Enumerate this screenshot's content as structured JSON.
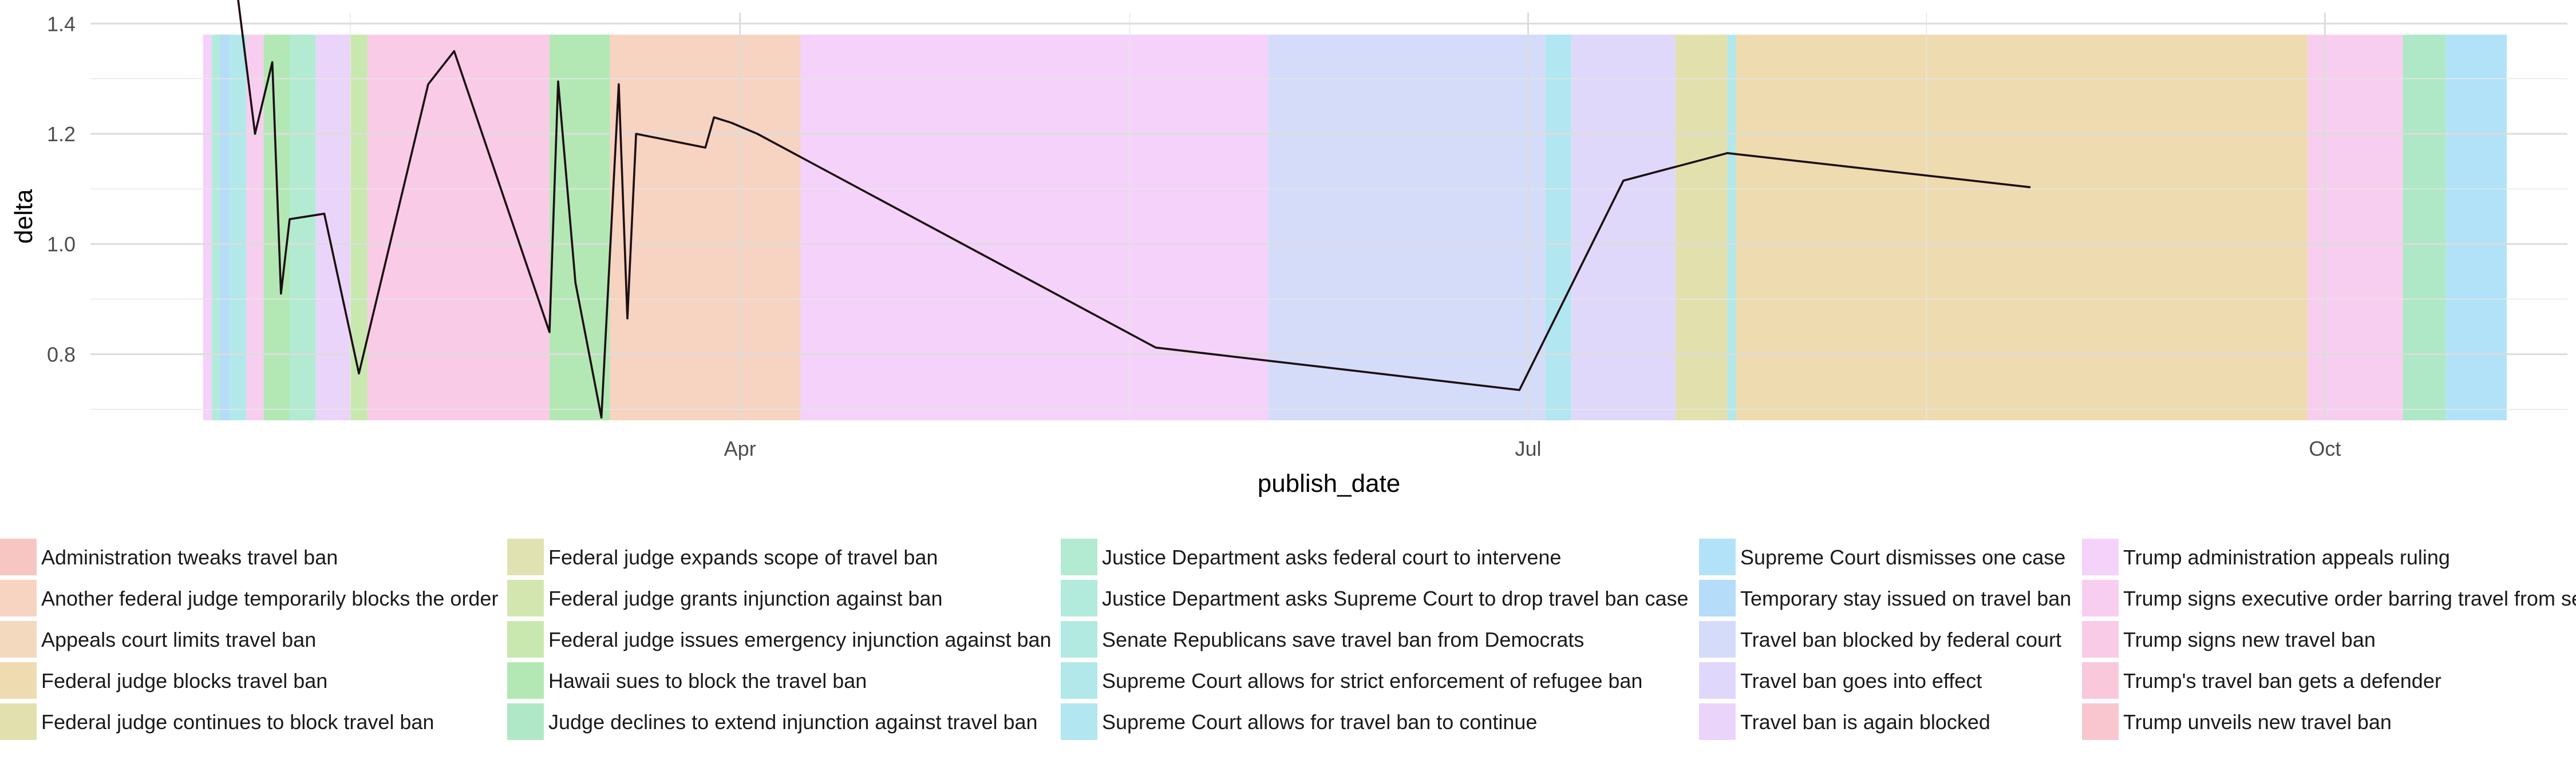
{
  "chart_data": {
    "type": "line",
    "title": "",
    "xlabel": "publish_date",
    "ylabel": "delta",
    "xlim": [
      "2017-01-16",
      "2017-10-29"
    ],
    "ylim": [
      0.68,
      1.42
    ],
    "y_ticks": [
      0.8,
      1.0,
      1.2,
      1.4
    ],
    "y_tick_labels": [
      "0.8",
      "1.0",
      "1.2",
      "1.4"
    ],
    "x_ticks": [
      "2017-04-01",
      "2017-07-01",
      "2017-10-01"
    ],
    "x_tick_labels": [
      "Apr",
      "Jul",
      "Oct"
    ],
    "x_minor_ticks": [
      "2017-02-15",
      "2017-05-16",
      "2017-08-16"
    ],
    "grid": true,
    "legend_position": "bottom",
    "bands": [
      {
        "start": "2017-01-29",
        "end": "2017-01-30",
        "label": "Trump administration appeals ruling"
      },
      {
        "start": "2017-01-30",
        "end": "2017-01-31",
        "label": "Justice Department asks Supreme Court to drop travel ban case"
      },
      {
        "start": "2017-01-31",
        "end": "2017-02-01",
        "label": "Temporary stay issued on travel ban"
      },
      {
        "start": "2017-02-01",
        "end": "2017-02-03",
        "label": "Supreme Court allows for strict enforcement of refugee ban"
      },
      {
        "start": "2017-02-03",
        "end": "2017-02-05",
        "label": "Trump signs executive order barring travel from se"
      },
      {
        "start": "2017-02-05",
        "end": "2017-02-08",
        "label": "Hawaii sues to block the travel ban"
      },
      {
        "start": "2017-02-08",
        "end": "2017-02-11",
        "label": "Justice Department asks federal court to intervene"
      },
      {
        "start": "2017-02-11",
        "end": "2017-02-15",
        "label": "Travel ban is again blocked"
      },
      {
        "start": "2017-02-15",
        "end": "2017-02-17",
        "label": "Federal judge issues emergency injunction against ban"
      },
      {
        "start": "2017-02-17",
        "end": "2017-03-10",
        "label": "Trump signs new travel ban"
      },
      {
        "start": "2017-03-10",
        "end": "2017-03-17",
        "label": "Hawaii sues to block the travel ban"
      },
      {
        "start": "2017-03-17",
        "end": "2017-04-08",
        "label": "Another federal judge temporarily blocks the order"
      },
      {
        "start": "2017-04-08",
        "end": "2017-06-01",
        "label": "Trump administration appeals ruling"
      },
      {
        "start": "2017-06-01",
        "end": "2017-07-03",
        "label": "Travel ban blocked by federal court"
      },
      {
        "start": "2017-07-03",
        "end": "2017-07-06",
        "label": "Supreme Court allows for travel ban to continue"
      },
      {
        "start": "2017-07-06",
        "end": "2017-07-18",
        "label": "Travel ban goes into effect"
      },
      {
        "start": "2017-07-18",
        "end": "2017-07-24",
        "label": "Federal judge continues to block travel ban"
      },
      {
        "start": "2017-07-24",
        "end": "2017-07-25",
        "label": "Supreme Court allows for strict enforcement of refugee ban"
      },
      {
        "start": "2017-07-25",
        "end": "2017-09-29",
        "label": "Federal judge blocks travel ban"
      },
      {
        "start": "2017-09-29",
        "end": "2017-10-10",
        "label": "Trump signs executive order barring travel from se"
      },
      {
        "start": "2017-10-10",
        "end": "2017-10-15",
        "label": "Judge declines to extend injunction against travel ban"
      },
      {
        "start": "2017-10-15",
        "end": "2017-10-22",
        "label": "Supreme Court dismisses one case"
      }
    ],
    "series": [
      {
        "x": [
          "2017-02-02",
          "2017-02-04",
          "2017-02-06",
          "2017-02-07",
          "2017-02-08",
          "2017-02-12",
          "2017-02-16",
          "2017-02-24",
          "2017-02-27",
          "2017-03-10",
          "2017-03-11",
          "2017-03-13",
          "2017-03-16",
          "2017-03-18",
          "2017-03-19",
          "2017-03-20",
          "2017-03-28",
          "2017-03-29",
          "2017-03-31",
          "2017-04-03",
          "2017-05-19",
          "2017-06-30",
          "2017-07-12",
          "2017-07-24",
          "2017-08-28"
        ],
        "y": [
          1.45,
          1.2,
          1.33,
          0.91,
          1.045,
          1.055,
          0.765,
          1.29,
          1.35,
          0.84,
          1.295,
          0.93,
          0.685,
          1.29,
          0.865,
          1.2,
          1.175,
          1.23,
          1.22,
          1.2,
          0.812,
          0.735,
          1.115,
          1.165,
          1.103
        ]
      }
    ],
    "legend_columns": [
      [
        {
          "label": "Administration tweaks travel ban",
          "color": "#f8c6c2"
        },
        {
          "label": "Another federal judge temporarily blocks the order",
          "color": "#f7d3c1"
        },
        {
          "label": "Appeals court limits travel ban",
          "color": "#f3d9bd"
        },
        {
          "label": "Federal judge blocks travel ban",
          "color": "#efdbb0"
        },
        {
          "label": "Federal judge continues to block travel ban",
          "color": "#e2e1ae"
        }
      ],
      [
        {
          "label": "Federal judge expands scope of travel ban",
          "color": "#e0e2b2"
        },
        {
          "label": "Federal judge grants injunction against ban",
          "color": "#d4e6b0"
        },
        {
          "label": "Federal judge issues emergency injunction against ban",
          "color": "#c9e8b0"
        },
        {
          "label": "Hawaii sues to block the travel ban",
          "color": "#b3e8b5"
        },
        {
          "label": "Judge declines to extend injunction against travel ban",
          "color": "#afe8c6"
        }
      ],
      [
        {
          "label": "Justice Department asks federal court to intervene",
          "color": "#b2ead2"
        },
        {
          "label": "Justice Department asks Supreme Court to drop travel ban case",
          "color": "#b2eadc"
        },
        {
          "label": "Senate Republicans save travel ban from Democrats",
          "color": "#b2eae2"
        },
        {
          "label": "Supreme Court allows for strict enforcement of refugee ban",
          "color": "#b2e8e9"
        },
        {
          "label": "Supreme Court allows for travel ban to continue",
          "color": "#b2e6f0"
        }
      ],
      [
        {
          "label": "Supreme Court dismisses one case",
          "color": "#b2e2f7"
        },
        {
          "label": "Temporary stay issued on travel ban",
          "color": "#b5dcf8"
        },
        {
          "label": "Travel ban blocked by federal court",
          "color": "#d4dcfa"
        },
        {
          "label": "Travel ban goes into effect",
          "color": "#e0d8fa"
        },
        {
          "label": "Travel ban is again blocked",
          "color": "#ead4fa"
        }
      ],
      [
        {
          "label": "Trump administration appeals ruling",
          "color": "#f4d2fa"
        },
        {
          "label": "Trump signs executive order barring travel from se",
          "color": "#f8cef0"
        },
        {
          "label": "Trump signs new travel ban",
          "color": "#f9cbe6"
        },
        {
          "label": "Trump's travel ban gets a defender",
          "color": "#f9c9db"
        },
        {
          "label": "Trump unveils new travel ban",
          "color": "#f9c6cf"
        }
      ]
    ]
  }
}
